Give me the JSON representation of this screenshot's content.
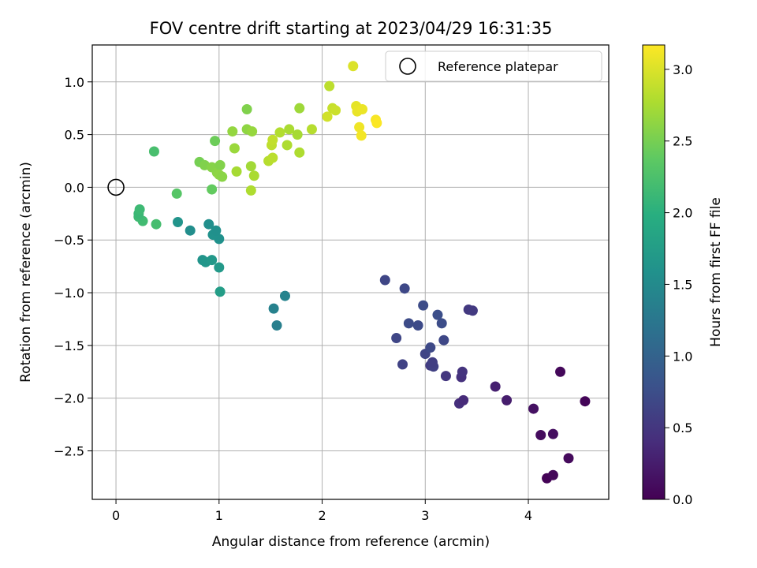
{
  "chart_data": {
    "type": "scatter",
    "title": "FOV centre drift starting at 2023/04/29 16:31:35",
    "xlabel": "Angular distance from reference (arcmin)",
    "ylabel": "Rotation from reference (arcmin)",
    "xlim": [
      -0.23,
      4.78
    ],
    "ylim": [
      -2.96,
      1.35
    ],
    "xticks": [
      0,
      1,
      2,
      3,
      4
    ],
    "xtick_labels": [
      "0",
      "1",
      "2",
      "3",
      "4"
    ],
    "yticks": [
      1.0,
      0.5,
      0.0,
      -0.5,
      -1.0,
      -1.5,
      -2.0,
      -2.5
    ],
    "ytick_labels": [
      "1.0",
      "0.5",
      "0.0",
      "−0.5",
      "−1.0",
      "−1.5",
      "−2.0",
      "−2.5"
    ],
    "grid": true,
    "legend": {
      "position": "top-right",
      "entries": [
        "Reference platepar"
      ]
    },
    "reference_point": {
      "x": 0,
      "y": 0,
      "label": "Reference platepar"
    },
    "colorbar": {
      "label": "Hours from first FF file",
      "range": [
        0.0,
        3.17
      ],
      "colormap": "viridis",
      "ticks": [
        0.0,
        0.5,
        1.0,
        1.5,
        2.0,
        2.5,
        3.0
      ],
      "tick_labels": [
        "0.0",
        "0.5",
        "1.0",
        "1.5",
        "2.0",
        "2.5",
        "3.0"
      ]
    },
    "points": [
      {
        "x": 4.18,
        "y": -2.76,
        "c": 0.02
      },
      {
        "x": 4.24,
        "y": -2.73,
        "c": 0.05
      },
      {
        "x": 4.39,
        "y": -2.57,
        "c": 0.08
      },
      {
        "x": 4.12,
        "y": -2.35,
        "c": 0.1
      },
      {
        "x": 4.24,
        "y": -2.34,
        "c": 0.12
      },
      {
        "x": 4.05,
        "y": -2.1,
        "c": 0.14
      },
      {
        "x": 4.55,
        "y": -2.03,
        "c": 0.04
      },
      {
        "x": 4.31,
        "y": -1.75,
        "c": 0.06
      },
      {
        "x": 3.79,
        "y": -2.02,
        "c": 0.25
      },
      {
        "x": 3.68,
        "y": -1.89,
        "c": 0.28
      },
      {
        "x": 3.33,
        "y": -2.05,
        "c": 0.42
      },
      {
        "x": 3.37,
        "y": -2.02,
        "c": 0.38
      },
      {
        "x": 3.35,
        "y": -1.8,
        "c": 0.44
      },
      {
        "x": 3.36,
        "y": -1.75,
        "c": 0.47
      },
      {
        "x": 3.2,
        "y": -1.79,
        "c": 0.5
      },
      {
        "x": 3.05,
        "y": -1.69,
        "c": 0.55
      },
      {
        "x": 3.08,
        "y": -1.7,
        "c": 0.6
      },
      {
        "x": 3.07,
        "y": -1.66,
        "c": 0.58
      },
      {
        "x": 2.78,
        "y": -1.68,
        "c": 0.62
      },
      {
        "x": 3.0,
        "y": -1.58,
        "c": 0.64
      },
      {
        "x": 3.05,
        "y": -1.52,
        "c": 0.7
      },
      {
        "x": 2.72,
        "y": -1.43,
        "c": 0.66
      },
      {
        "x": 3.18,
        "y": -1.45,
        "c": 0.68
      },
      {
        "x": 3.16,
        "y": -1.29,
        "c": 0.74
      },
      {
        "x": 2.84,
        "y": -1.29,
        "c": 0.72
      },
      {
        "x": 2.93,
        "y": -1.31,
        "c": 0.71
      },
      {
        "x": 3.12,
        "y": -1.21,
        "c": 0.76
      },
      {
        "x": 2.98,
        "y": -1.12,
        "c": 0.73
      },
      {
        "x": 3.42,
        "y": -1.16,
        "c": 0.52
      },
      {
        "x": 3.46,
        "y": -1.17,
        "c": 0.54
      },
      {
        "x": 2.8,
        "y": -0.96,
        "c": 0.69
      },
      {
        "x": 2.61,
        "y": -0.88,
        "c": 0.66
      },
      {
        "x": 1.56,
        "y": -1.31,
        "c": 1.35
      },
      {
        "x": 1.53,
        "y": -1.15,
        "c": 1.38
      },
      {
        "x": 1.64,
        "y": -1.03,
        "c": 1.4
      },
      {
        "x": 1.01,
        "y": -0.99,
        "c": 1.75
      },
      {
        "x": 1.0,
        "y": -0.76,
        "c": 1.7
      },
      {
        "x": 0.84,
        "y": -0.69,
        "c": 1.62
      },
      {
        "x": 0.87,
        "y": -0.71,
        "c": 1.65
      },
      {
        "x": 0.93,
        "y": -0.69,
        "c": 1.68
      },
      {
        "x": 1.0,
        "y": -0.49,
        "c": 1.58
      },
      {
        "x": 0.94,
        "y": -0.45,
        "c": 1.6
      },
      {
        "x": 0.97,
        "y": -0.41,
        "c": 1.57
      },
      {
        "x": 0.9,
        "y": -0.35,
        "c": 1.56
      },
      {
        "x": 0.72,
        "y": -0.41,
        "c": 1.55
      },
      {
        "x": 0.6,
        "y": -0.33,
        "c": 1.63
      },
      {
        "x": 0.39,
        "y": -0.35,
        "c": 2.2
      },
      {
        "x": 0.26,
        "y": -0.32,
        "c": 2.17
      },
      {
        "x": 0.22,
        "y": -0.28,
        "c": 2.15
      },
      {
        "x": 0.22,
        "y": -0.25,
        "c": 2.12
      },
      {
        "x": 0.23,
        "y": -0.21,
        "c": 2.14
      },
      {
        "x": 0.59,
        "y": -0.06,
        "c": 2.32
      },
      {
        "x": 0.37,
        "y": 0.34,
        "c": 2.22
      },
      {
        "x": 0.93,
        "y": -0.02,
        "c": 2.4
      },
      {
        "x": 0.96,
        "y": 0.44,
        "c": 2.45
      },
      {
        "x": 0.81,
        "y": 0.24,
        "c": 2.5
      },
      {
        "x": 0.86,
        "y": 0.21,
        "c": 2.55
      },
      {
        "x": 0.93,
        "y": 0.19,
        "c": 2.58
      },
      {
        "x": 0.98,
        "y": 0.14,
        "c": 2.6
      },
      {
        "x": 1.01,
        "y": 0.21,
        "c": 2.56
      },
      {
        "x": 1.0,
        "y": 0.12,
        "c": 2.62
      },
      {
        "x": 1.03,
        "y": 0.1,
        "c": 2.6
      },
      {
        "x": 1.13,
        "y": 0.53,
        "c": 2.65
      },
      {
        "x": 1.15,
        "y": 0.37,
        "c": 2.68
      },
      {
        "x": 1.17,
        "y": 0.15,
        "c": 2.74
      },
      {
        "x": 1.27,
        "y": 0.74,
        "c": 2.55
      },
      {
        "x": 1.27,
        "y": 0.55,
        "c": 2.62
      },
      {
        "x": 1.32,
        "y": 0.53,
        "c": 2.66
      },
      {
        "x": 1.31,
        "y": 0.2,
        "c": 2.72
      },
      {
        "x": 1.34,
        "y": 0.11,
        "c": 2.76
      },
      {
        "x": 1.31,
        "y": -0.03,
        "c": 2.78
      },
      {
        "x": 1.48,
        "y": 0.25,
        "c": 2.82
      },
      {
        "x": 1.52,
        "y": 0.28,
        "c": 2.84
      },
      {
        "x": 1.51,
        "y": 0.4,
        "c": 2.86
      },
      {
        "x": 1.52,
        "y": 0.45,
        "c": 2.88
      },
      {
        "x": 1.59,
        "y": 0.52,
        "c": 2.8
      },
      {
        "x": 1.66,
        "y": 0.4,
        "c": 2.78
      },
      {
        "x": 1.68,
        "y": 0.55,
        "c": 2.76
      },
      {
        "x": 1.76,
        "y": 0.5,
        "c": 2.74
      },
      {
        "x": 1.78,
        "y": 0.33,
        "c": 2.78
      },
      {
        "x": 1.78,
        "y": 0.75,
        "c": 2.7
      },
      {
        "x": 1.9,
        "y": 0.55,
        "c": 2.82
      },
      {
        "x": 2.05,
        "y": 0.67,
        "c": 2.95
      },
      {
        "x": 2.07,
        "y": 0.96,
        "c": 2.85
      },
      {
        "x": 2.1,
        "y": 0.75,
        "c": 2.9
      },
      {
        "x": 2.13,
        "y": 0.73,
        "c": 2.92
      },
      {
        "x": 2.3,
        "y": 1.15,
        "c": 3.0
      },
      {
        "x": 2.33,
        "y": 0.77,
        "c": 3.05
      },
      {
        "x": 2.34,
        "y": 0.72,
        "c": 3.07
      },
      {
        "x": 2.39,
        "y": 0.74,
        "c": 3.08
      },
      {
        "x": 2.36,
        "y": 0.57,
        "c": 3.1
      },
      {
        "x": 2.38,
        "y": 0.49,
        "c": 3.12
      },
      {
        "x": 2.52,
        "y": 0.64,
        "c": 3.14
      },
      {
        "x": 2.53,
        "y": 0.61,
        "c": 3.16
      }
    ]
  }
}
